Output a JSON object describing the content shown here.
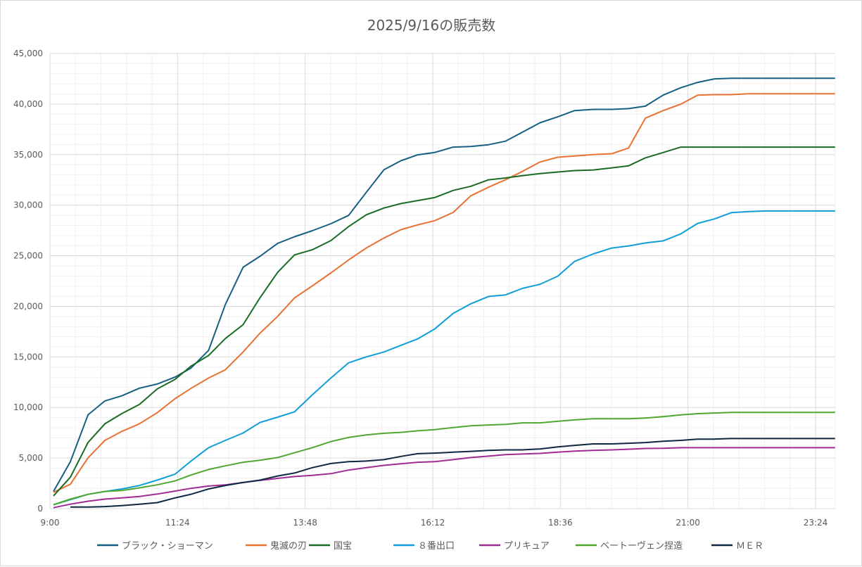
{
  "chart_data": {
    "type": "line",
    "title": "2025/9/16の販売数",
    "xlabel": "",
    "ylabel": "",
    "xlim": [
      "9:00",
      "23:46"
    ],
    "ylim": [
      0,
      45000
    ],
    "x_ticks": [
      "9:00",
      "11:24",
      "13:48",
      "16:12",
      "18:36",
      "21:00",
      "23:24"
    ],
    "y_ticks": [
      "0",
      "5,000",
      "10,000",
      "15,000",
      "20,000",
      "25,000",
      "30,000",
      "35,000",
      "40,000",
      "45,000"
    ],
    "grid": {
      "major": true,
      "minor": true
    },
    "legend_position": "bottom",
    "x": [
      "9:04",
      "9:23",
      "9:43",
      "10:02",
      "10:21",
      "10:41",
      "11:01",
      "11:21",
      "11:39",
      "11:59",
      "12:18",
      "12:38",
      "12:57",
      "13:17",
      "13:36",
      "13:56",
      "14:17",
      "14:37",
      "14:57",
      "15:17",
      "15:36",
      "15:55",
      "16:14",
      "16:35",
      "16:55",
      "17:15",
      "17:34",
      "17:53",
      "18:13",
      "18:33",
      "18:52",
      "19:13",
      "19:34",
      "19:53",
      "20:12",
      "20:32",
      "20:52",
      "21:11",
      "21:30",
      "21:49",
      "22:09",
      "22:27",
      "22:47",
      "23:07",
      "23:26",
      "23:46"
    ],
    "series": [
      {
        "name": "ブラック・ショーマン",
        "color": "#156082",
        "values": [
          1700,
          4640,
          9270,
          10650,
          11150,
          11910,
          12320,
          13000,
          13880,
          15640,
          20190,
          23860,
          24940,
          26230,
          26880,
          27470,
          28170,
          28990,
          31280,
          33510,
          34390,
          34980,
          35210,
          35740,
          35800,
          35980,
          36330,
          37210,
          38150,
          38730,
          39350,
          39470,
          39470,
          39550,
          39790,
          40880,
          41610,
          42140,
          42490,
          42550,
          42550,
          42550,
          42550,
          42550,
          42550,
          42550
        ]
      },
      {
        "name": "鬼滅の刃",
        "color": "#E97132",
        "values": [
          1610,
          2410,
          5020,
          6750,
          7630,
          8390,
          9480,
          10860,
          11880,
          12910,
          13730,
          15490,
          17340,
          19010,
          20840,
          22010,
          23300,
          24590,
          25770,
          26760,
          27580,
          28050,
          28460,
          29280,
          30930,
          31780,
          32510,
          33330,
          34270,
          34740,
          34860,
          35000,
          35090,
          35650,
          38610,
          39350,
          39990,
          40880,
          40930,
          40930,
          41020,
          41020,
          41020,
          41020,
          41020,
          41020
        ]
      },
      {
        "name": "国宝",
        "color": "#196B24",
        "values": [
          1260,
          3110,
          6540,
          8390,
          9390,
          10300,
          11830,
          12770,
          14080,
          15140,
          16820,
          18190,
          20840,
          23360,
          25090,
          25590,
          26500,
          27880,
          29050,
          29720,
          30160,
          30460,
          30750,
          31460,
          31870,
          32510,
          32690,
          32920,
          33130,
          33280,
          33420,
          33480,
          33690,
          33890,
          34680,
          35210,
          35740,
          35740,
          35740,
          35740,
          35740,
          35740,
          35740,
          35740,
          35740,
          35740
        ]
      },
      {
        "name": "８番出口",
        "color": "#0F9ED5",
        "values": [
          380,
          880,
          1410,
          1700,
          1940,
          2290,
          2820,
          3400,
          4690,
          6020,
          6750,
          7480,
          8510,
          9040,
          9570,
          11240,
          12910,
          14410,
          15000,
          15490,
          16140,
          16780,
          17750,
          19300,
          20250,
          20980,
          21130,
          21770,
          22180,
          22980,
          24440,
          25180,
          25760,
          25970,
          26260,
          26470,
          27170,
          28200,
          28640,
          29260,
          29370,
          29430,
          29430,
          29430,
          29430,
          29430
        ]
      },
      {
        "name": "プリキュア",
        "color": "#A02B93",
        "values": [
          90,
          440,
          730,
          940,
          1060,
          1200,
          1440,
          1730,
          2000,
          2230,
          2350,
          2580,
          2790,
          2990,
          3170,
          3290,
          3460,
          3810,
          4050,
          4280,
          4430,
          4580,
          4640,
          4840,
          5050,
          5190,
          5340,
          5400,
          5460,
          5580,
          5690,
          5750,
          5810,
          5870,
          5950,
          5960,
          6020,
          6020,
          6020,
          6020,
          6020,
          6020,
          6020,
          6020,
          6020,
          6020
        ]
      },
      {
        "name": "ベートーヴェン捏造",
        "color": "#4EA72E",
        "values": [
          380,
          940,
          1410,
          1700,
          1790,
          2050,
          2350,
          2730,
          3320,
          3870,
          4230,
          4580,
          4780,
          5050,
          5520,
          6020,
          6630,
          7040,
          7280,
          7450,
          7540,
          7690,
          7810,
          8010,
          8190,
          8270,
          8330,
          8480,
          8480,
          8630,
          8770,
          8890,
          8890,
          8890,
          8950,
          9100,
          9270,
          9390,
          9450,
          9510,
          9510,
          9510,
          9510,
          9510,
          9510,
          9510
        ]
      },
      {
        "name": "ＭＥＲ",
        "color": "#0E2841",
        "values": [
          null,
          150,
          150,
          200,
          290,
          440,
          590,
          1060,
          1410,
          1940,
          2290,
          2580,
          2820,
          3230,
          3520,
          4050,
          4460,
          4640,
          4700,
          4840,
          5160,
          5430,
          5490,
          5580,
          5660,
          5750,
          5810,
          5810,
          5900,
          6100,
          6250,
          6400,
          6400,
          6460,
          6530,
          6660,
          6750,
          6870,
          6870,
          6930,
          6930,
          6930,
          6930,
          6930,
          6930,
          6930
        ]
      }
    ]
  }
}
